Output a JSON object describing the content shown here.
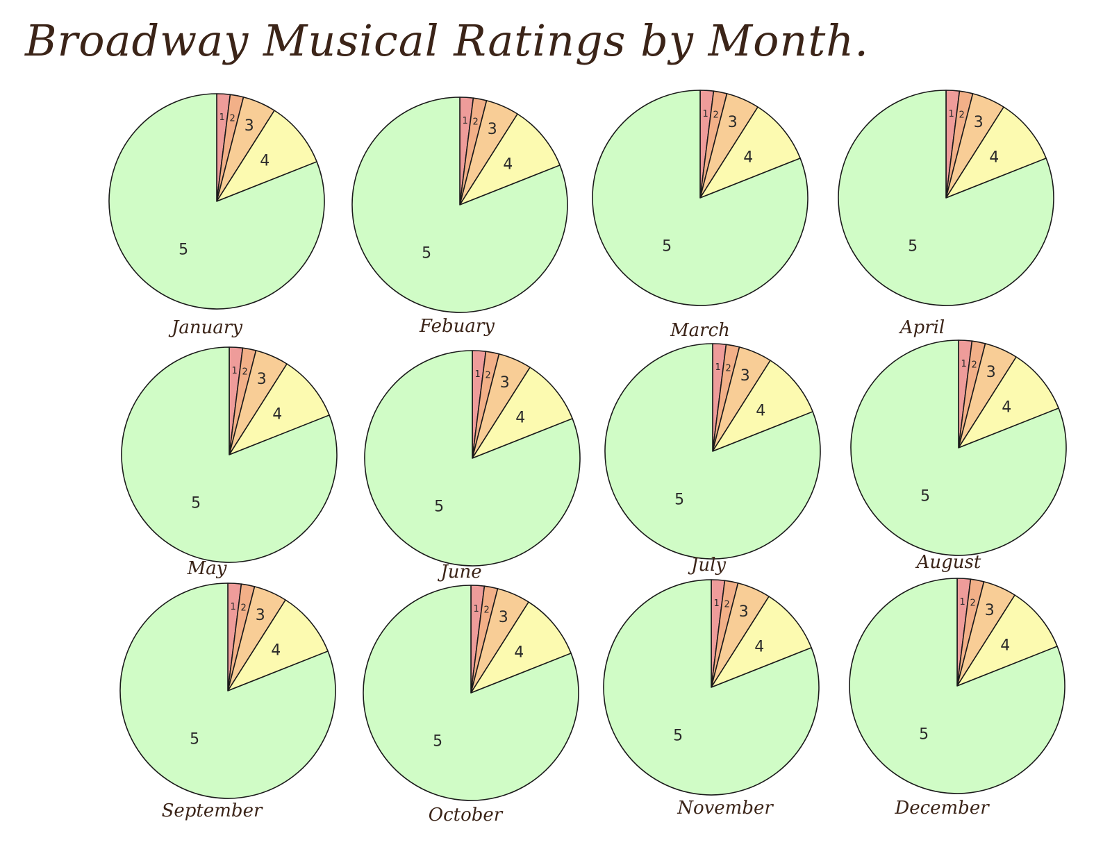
{
  "title": "Broadway Musical Ratings by Month.",
  "colors": {
    "1": "#ee9c9a",
    "2": "#f2b088",
    "3": "#f8cd96",
    "4": "#fcfab0",
    "5": "#d0fcc6",
    "outline": "#1a1a1a",
    "ink": "#3b2418"
  },
  "chart_data": {
    "type": "pie",
    "title": "Broadway Musical Ratings by Month.",
    "categories": [
      "1",
      "2",
      "3",
      "4",
      "5"
    ],
    "series": [
      {
        "name": "January",
        "values": [
          2,
          2,
          5,
          10,
          81
        ]
      },
      {
        "name": "Febuary",
        "values": [
          2,
          2,
          5,
          10,
          81
        ]
      },
      {
        "name": "March",
        "values": [
          2,
          2,
          5,
          10,
          81
        ]
      },
      {
        "name": "April",
        "values": [
          2,
          2,
          5,
          10,
          81
        ]
      },
      {
        "name": "May",
        "values": [
          2,
          2,
          5,
          10,
          81
        ]
      },
      {
        "name": "June",
        "values": [
          2,
          2,
          5,
          10,
          81
        ]
      },
      {
        "name": "July",
        "values": [
          2,
          2,
          5,
          10,
          81
        ]
      },
      {
        "name": "August",
        "values": [
          2,
          2,
          5,
          10,
          81
        ]
      },
      {
        "name": "September",
        "values": [
          2,
          2,
          5,
          10,
          81
        ]
      },
      {
        "name": "October",
        "values": [
          2,
          2,
          5,
          10,
          81
        ]
      },
      {
        "name": "November",
        "values": [
          2,
          2,
          5,
          10,
          81
        ]
      },
      {
        "name": "December",
        "values": [
          2,
          2,
          5,
          10,
          81
        ]
      }
    ]
  }
}
